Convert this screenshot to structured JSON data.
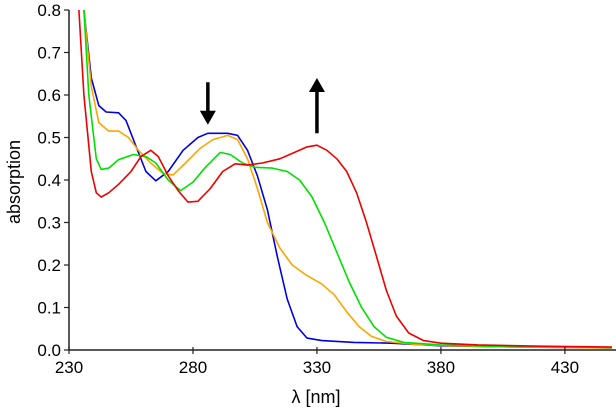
{
  "chart_data": {
    "type": "line",
    "title": "",
    "xlabel": "λ [nm]",
    "ylabel": "absorption",
    "xlim": [
      230,
      449
    ],
    "ylim": [
      0,
      0.8
    ],
    "xticks": [
      "230",
      "280",
      "330",
      "380",
      "430"
    ],
    "yticks": [
      "0.0",
      "0.1",
      "0.2",
      "0.3",
      "0.4",
      "0.5",
      "0.6",
      "0.7",
      "0.8"
    ],
    "grid": false,
    "legend": null,
    "annotations": [
      {
        "type": "arrow-down",
        "x_nm": 286,
        "y_from": 0.63,
        "y_to": 0.53
      },
      {
        "type": "arrow-up",
        "x_nm": 330,
        "y_from": 0.51,
        "y_to": 0.64
      }
    ],
    "series": [
      {
        "name": "blue",
        "color": "#0000e0",
        "points": [
          [
            236,
            0.8
          ],
          [
            239,
            0.64
          ],
          [
            242,
            0.575
          ],
          [
            245,
            0.56
          ],
          [
            250,
            0.558
          ],
          [
            253,
            0.54
          ],
          [
            257,
            0.48
          ],
          [
            261,
            0.42
          ],
          [
            265,
            0.398
          ],
          [
            270,
            0.42
          ],
          [
            276,
            0.47
          ],
          [
            282,
            0.5
          ],
          [
            286,
            0.51
          ],
          [
            294,
            0.51
          ],
          [
            298,
            0.505
          ],
          [
            302,
            0.47
          ],
          [
            306,
            0.41
          ],
          [
            310,
            0.33
          ],
          [
            314,
            0.22
          ],
          [
            318,
            0.12
          ],
          [
            322,
            0.055
          ],
          [
            326,
            0.028
          ],
          [
            332,
            0.022
          ],
          [
            345,
            0.018
          ],
          [
            360,
            0.016
          ],
          [
            370,
            0.013
          ],
          [
            380,
            0.01
          ],
          [
            400,
            0.008
          ],
          [
            430,
            0.006
          ],
          [
            449,
            0.005
          ]
        ]
      },
      {
        "name": "orange",
        "color": "#ffa500",
        "points": [
          [
            236,
            0.8
          ],
          [
            239,
            0.62
          ],
          [
            242,
            0.535
          ],
          [
            246,
            0.515
          ],
          [
            250,
            0.515
          ],
          [
            254,
            0.5
          ],
          [
            258,
            0.47
          ],
          [
            263,
            0.44
          ],
          [
            268,
            0.415
          ],
          [
            272,
            0.412
          ],
          [
            277,
            0.44
          ],
          [
            283,
            0.475
          ],
          [
            288,
            0.495
          ],
          [
            294,
            0.505
          ],
          [
            298,
            0.495
          ],
          [
            302,
            0.45
          ],
          [
            306,
            0.38
          ],
          [
            310,
            0.3
          ],
          [
            315,
            0.24
          ],
          [
            320,
            0.2
          ],
          [
            326,
            0.175
          ],
          [
            332,
            0.155
          ],
          [
            337,
            0.13
          ],
          [
            342,
            0.09
          ],
          [
            347,
            0.055
          ],
          [
            352,
            0.032
          ],
          [
            358,
            0.02
          ],
          [
            370,
            0.013
          ],
          [
            385,
            0.01
          ],
          [
            410,
            0.007
          ],
          [
            449,
            0.005
          ]
        ]
      },
      {
        "name": "green",
        "color": "#00e000",
        "points": [
          [
            236,
            0.8
          ],
          [
            238,
            0.6
          ],
          [
            241,
            0.45
          ],
          [
            243,
            0.425
          ],
          [
            246,
            0.428
          ],
          [
            250,
            0.448
          ],
          [
            256,
            0.46
          ],
          [
            261,
            0.455
          ],
          [
            265,
            0.44
          ],
          [
            270,
            0.4
          ],
          [
            275,
            0.375
          ],
          [
            280,
            0.395
          ],
          [
            285,
            0.43
          ],
          [
            291,
            0.465
          ],
          [
            295,
            0.46
          ],
          [
            300,
            0.44
          ],
          [
            305,
            0.43
          ],
          [
            312,
            0.428
          ],
          [
            318,
            0.42
          ],
          [
            323,
            0.4
          ],
          [
            328,
            0.36
          ],
          [
            333,
            0.3
          ],
          [
            338,
            0.23
          ],
          [
            343,
            0.16
          ],
          [
            348,
            0.1
          ],
          [
            353,
            0.055
          ],
          [
            358,
            0.03
          ],
          [
            365,
            0.018
          ],
          [
            380,
            0.012
          ],
          [
            400,
            0.009
          ],
          [
            430,
            0.007
          ],
          [
            449,
            0.006
          ]
        ]
      },
      {
        "name": "red",
        "color": "#ee0000",
        "points": [
          [
            234,
            0.8
          ],
          [
            236,
            0.6
          ],
          [
            239,
            0.42
          ],
          [
            241,
            0.37
          ],
          [
            243,
            0.36
          ],
          [
            246,
            0.37
          ],
          [
            250,
            0.39
          ],
          [
            255,
            0.42
          ],
          [
            259,
            0.455
          ],
          [
            263,
            0.47
          ],
          [
            266,
            0.455
          ],
          [
            270,
            0.41
          ],
          [
            274,
            0.375
          ],
          [
            278,
            0.348
          ],
          [
            282,
            0.35
          ],
          [
            287,
            0.38
          ],
          [
            292,
            0.42
          ],
          [
            297,
            0.438
          ],
          [
            302,
            0.435
          ],
          [
            308,
            0.44
          ],
          [
            315,
            0.45
          ],
          [
            321,
            0.465
          ],
          [
            326,
            0.478
          ],
          [
            330,
            0.482
          ],
          [
            334,
            0.47
          ],
          [
            338,
            0.45
          ],
          [
            342,
            0.42
          ],
          [
            346,
            0.37
          ],
          [
            350,
            0.3
          ],
          [
            354,
            0.22
          ],
          [
            358,
            0.14
          ],
          [
            362,
            0.08
          ],
          [
            367,
            0.04
          ],
          [
            373,
            0.022
          ],
          [
            380,
            0.016
          ],
          [
            395,
            0.012
          ],
          [
            420,
            0.009
          ],
          [
            449,
            0.007
          ]
        ]
      }
    ]
  }
}
